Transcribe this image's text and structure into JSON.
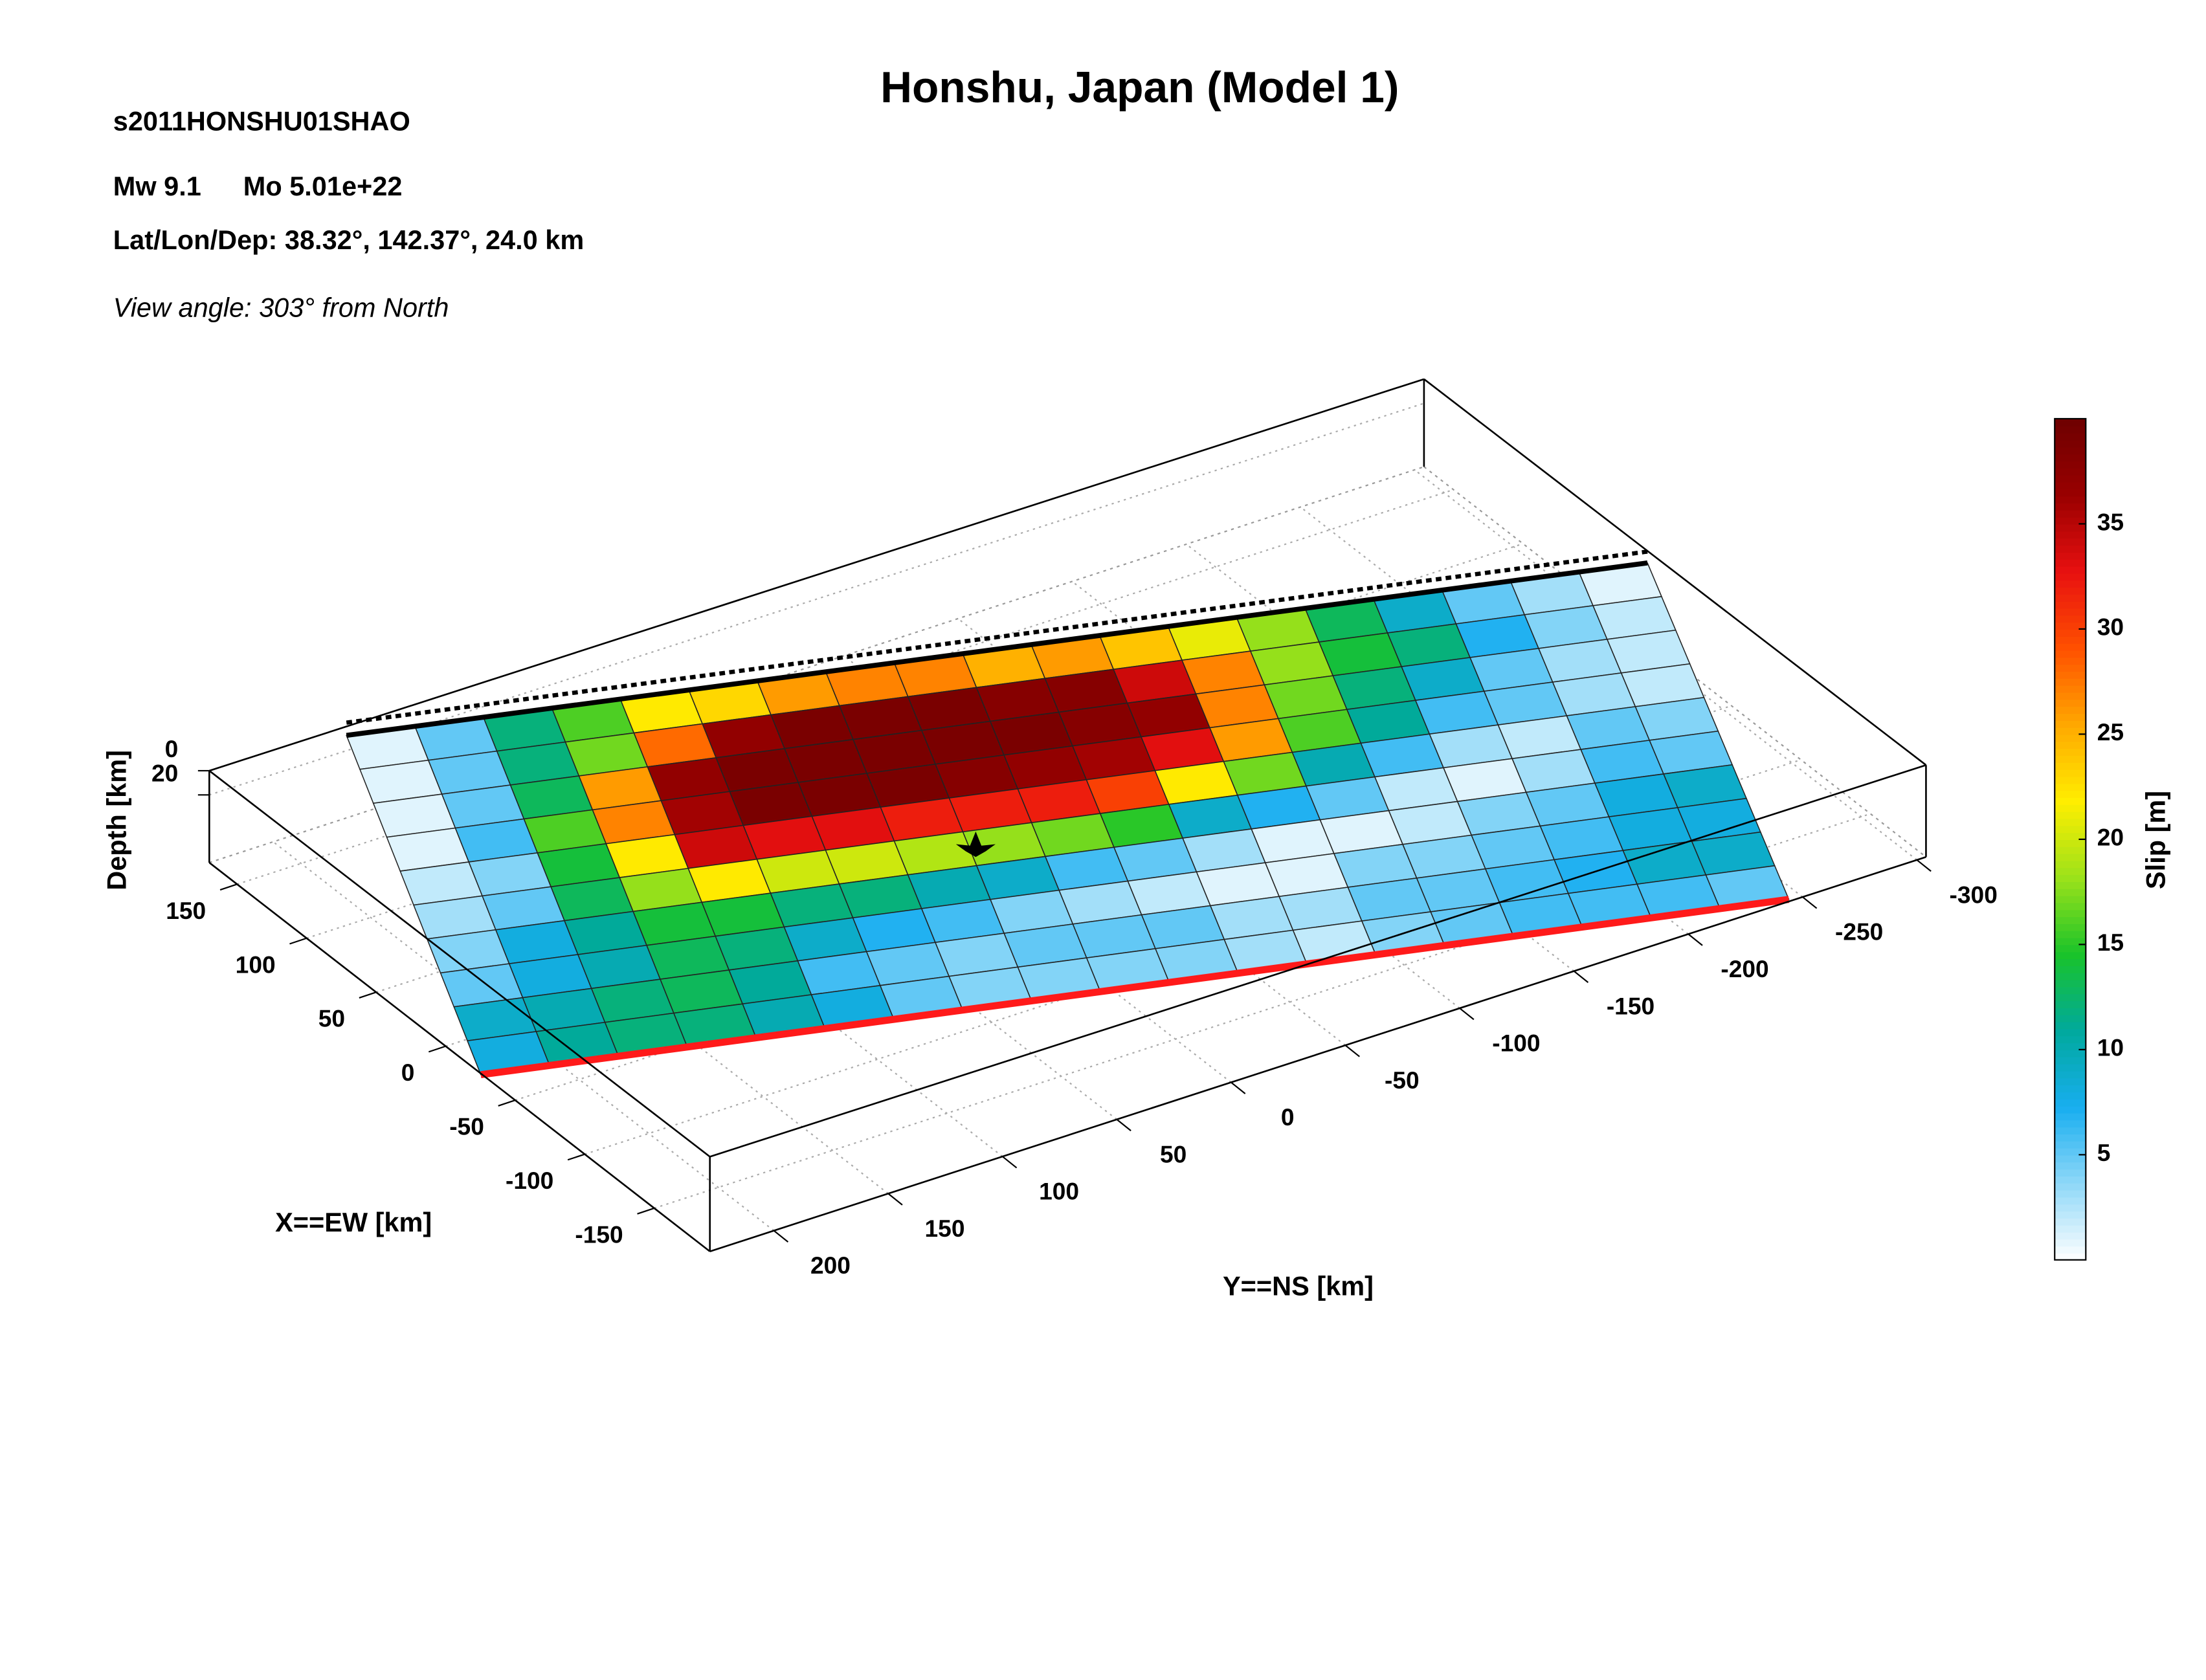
{
  "header": {
    "event_id": "s2011HONSHU01SHAO",
    "magnitude": "Mw 9.1",
    "moment": "Mo 5.01e+22",
    "location": "Lat/Lon/Dep: 38.32°, 142.37°, 24.0 km",
    "view_angle": "View angle: 303° from North"
  },
  "chart_data": {
    "type": "heatmap",
    "title": "Honshu, Japan (Model 1)",
    "x_label": "X==EW [km]",
    "y_label": "Y==NS [km]",
    "z_label": "Depth [km]",
    "colorbar_label": "Slip [m]",
    "xlim": [
      170,
      -190
    ],
    "xticks": [
      150,
      100,
      50,
      0,
      -50,
      -100,
      -150
    ],
    "ylim": [
      228,
      -304
    ],
    "yticks": [
      200,
      150,
      100,
      50,
      0,
      -50,
      -100,
      -150,
      -200,
      -250,
      -300
    ],
    "zlim": [
      0,
      76
    ],
    "zticks": [
      0,
      20
    ],
    "clim": [
      0,
      40
    ],
    "colorbar_ticks": [
      5,
      10,
      15,
      20,
      25,
      30,
      35
    ],
    "colormap": [
      "#ffffff",
      "#8fd8f8",
      "#18aef0",
      "#00a99d",
      "#19c32a",
      "#9be21a",
      "#ffee00",
      "#ffa800",
      "#ff5000",
      "#e81010",
      "#9a0000",
      "#6e0000"
    ],
    "grid": true,
    "slip": [
      [
        1,
        5,
        12,
        16,
        22,
        23,
        26,
        27,
        27,
        25,
        26,
        24,
        21,
        18,
        13,
        9,
        5,
        3,
        1
      ],
      [
        1,
        5,
        12,
        17,
        28,
        37,
        39,
        39,
        39,
        38,
        38,
        34,
        27,
        18,
        14,
        12,
        7,
        4,
        2
      ],
      [
        1,
        5,
        13,
        26,
        37,
        39,
        39,
        39,
        39,
        39,
        38,
        37,
        27,
        17,
        12,
        9,
        5,
        3,
        2
      ],
      [
        1,
        6,
        16,
        27,
        36,
        39,
        39,
        39,
        38,
        37,
        36,
        33,
        26,
        16,
        11,
        6,
        5,
        3,
        2
      ],
      [
        2,
        4,
        14,
        22,
        34,
        33,
        33,
        32,
        32,
        32,
        30,
        22,
        17,
        10,
        6,
        3,
        2,
        5,
        4
      ],
      [
        3,
        5,
        13,
        18,
        22,
        20,
        20,
        19,
        18,
        17,
        15,
        9,
        7,
        5,
        2,
        1,
        3,
        6,
        5
      ],
      [
        4,
        8,
        11,
        14,
        14,
        12,
        12,
        10,
        9,
        6,
        5,
        3,
        1,
        1,
        2,
        4,
        5,
        8,
        9
      ],
      [
        5,
        8,
        10,
        13,
        12,
        9,
        7,
        6,
        4,
        3,
        2,
        1,
        1,
        4,
        4,
        5,
        6,
        8,
        8
      ],
      [
        9,
        10,
        12,
        13,
        11,
        6,
        5,
        4,
        5,
        5,
        5,
        3,
        3,
        5,
        5,
        6,
        7,
        9,
        9
      ],
      [
        8,
        11,
        12,
        12,
        10,
        8,
        5,
        4,
        4,
        4,
        4,
        3,
        2,
        4,
        5,
        6,
        6,
        6,
        5
      ]
    ]
  }
}
